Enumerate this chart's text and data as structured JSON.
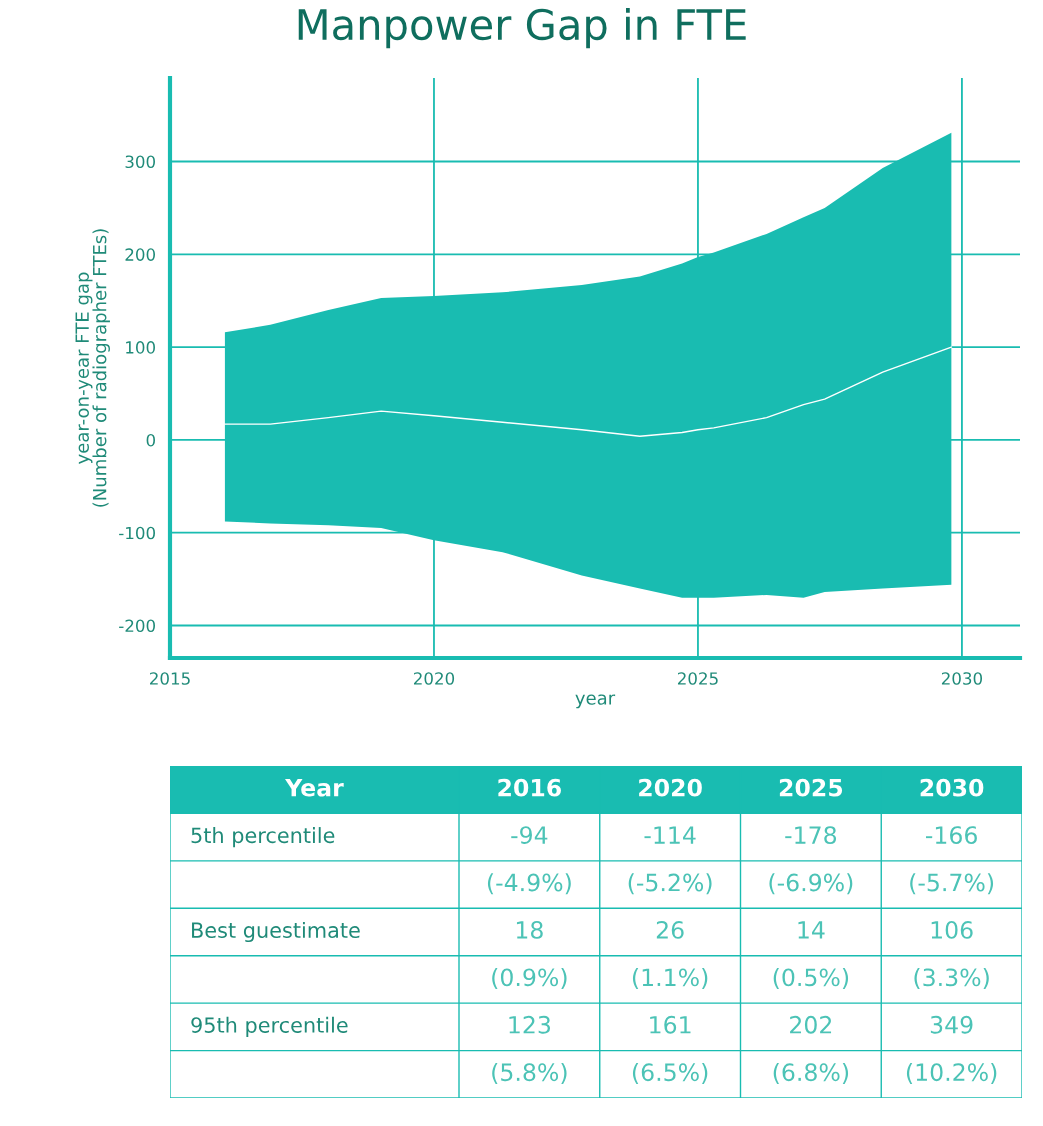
{
  "chart_data": [
    {
      "type": "area",
      "title": "Manpower Gap in FTE",
      "xlabel": "year",
      "ylabel": "year-on-year FTE gap\n(Number of radiographer FTEs)",
      "xlim": [
        2015,
        2031.1
      ],
      "ylim": [
        -235,
        390
      ],
      "xticks": [
        2015,
        2020,
        2025,
        2030
      ],
      "yticks": [
        -200,
        -100,
        0,
        100,
        200,
        300
      ],
      "grid": true,
      "series": [
        {
          "type": "line",
          "color": "#ffffff",
          "x": [
            2016.04,
            2016.9,
            2018.0,
            2019.0,
            2020.0,
            2021.3,
            2022.8,
            2023.9,
            2024.7,
            2025.0,
            2025.3,
            2026.3,
            2027.0,
            2027.4,
            2028.5,
            2029.8
          ],
          "values": [
            17,
            17,
            24,
            31,
            26,
            19,
            11,
            4,
            8,
            11,
            13,
            24,
            38,
            44,
            73,
            100
          ],
          "lower": [
            -88,
            -90,
            -92,
            -95,
            -108,
            -121,
            -146,
            -160,
            -170,
            -170,
            -170,
            -167,
            -170,
            -164,
            -160,
            -156
          ],
          "upper": [
            116,
            124,
            140,
            153,
            155,
            159,
            167,
            176,
            190,
            197,
            202,
            222,
            240,
            250,
            293,
            331
          ]
        }
      ]
    },
    {
      "type": "other",
      "ylabel": "Year",
      "categories": [
        "2016",
        "2020",
        "2025",
        "2030"
      ],
      "y_categories": [
        "5th percentile",
        null,
        "Best guestimate",
        null,
        "95th percentile",
        null
      ],
      "cell_labels": [
        [
          "-94",
          "-114",
          "-178",
          "-166"
        ],
        [
          "(-4.9%)",
          "(-5.2%)",
          "(-6.9%)",
          "(-5.7%)"
        ],
        [
          "18",
          "26",
          "14",
          "106"
        ],
        [
          "(0.9%)",
          "(1.1%)",
          "(0.5%)",
          "(3.3%)"
        ],
        [
          "123",
          "161",
          "202",
          "349"
        ],
        [
          "(5.8%)",
          "(6.5%)",
          "(6.8%)",
          "(10.2%)"
        ]
      ]
    }
  ]
}
